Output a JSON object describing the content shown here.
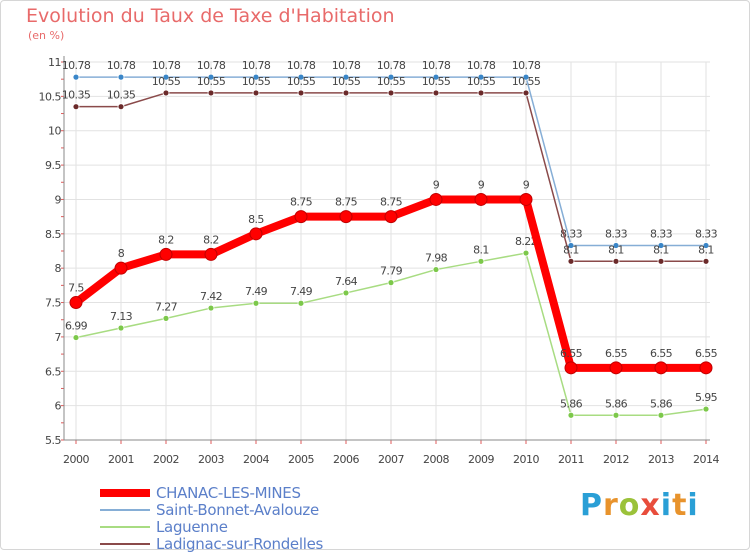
{
  "title": "Evolution du Taux de Taxe d'Habitation",
  "subtitle": "(en %)",
  "logo_text": "Proxiti",
  "chart_data": {
    "type": "line",
    "x": [
      "2000",
      "2001",
      "2002",
      "2003",
      "2004",
      "2005",
      "2006",
      "2007",
      "2008",
      "2009",
      "2010",
      "2011",
      "2012",
      "2013",
      "2014"
    ],
    "ylim": [
      5.5,
      11
    ],
    "yticks": [
      "5.5",
      "6",
      "6.5",
      "7",
      "7.5",
      "8",
      "8.5",
      "9",
      "9.5",
      "10",
      "10.5",
      "11"
    ],
    "grid": true,
    "legend_position": "bottom-left",
    "series": [
      {
        "name": "CHANAC-LES-MINES",
        "color": "#ff0000",
        "marker": "#ff0000",
        "values": [
          7.5,
          8,
          8.2,
          8.2,
          8.5,
          8.75,
          8.75,
          8.75,
          9,
          9,
          9,
          6.55,
          6.55,
          6.55,
          6.55
        ],
        "labels": [
          "7.5",
          "8",
          "8.2",
          "8.2",
          "8.5",
          "8.75",
          "8.75",
          "8.75",
          "9",
          "9",
          "9",
          "6.55",
          "6.55",
          "6.55",
          "6.55"
        ]
      },
      {
        "name": "Saint-Bonnet-Avalouze",
        "color": "#86aed6",
        "marker": "#3a86c8",
        "values": [
          10.78,
          10.78,
          10.78,
          10.78,
          10.78,
          10.78,
          10.78,
          10.78,
          10.78,
          10.78,
          10.78,
          8.33,
          8.33,
          8.33,
          8.33
        ],
        "labels": [
          "10.78",
          "10.78",
          "10.78",
          "10.78",
          "10.78",
          "10.78",
          "10.78",
          "10.78",
          "10.78",
          "10.78",
          "10.78",
          "8.33",
          "8.33",
          "8.33",
          "8.33"
        ]
      },
      {
        "name": "Laguenne",
        "color": "#a8dc82",
        "marker": "#7cc84a",
        "values": [
          6.99,
          7.13,
          7.27,
          7.42,
          7.49,
          7.49,
          7.64,
          7.79,
          7.98,
          8.1,
          8.22,
          5.86,
          5.86,
          5.86,
          5.95
        ],
        "labels": [
          "6.99",
          "7.13",
          "7.27",
          "7.42",
          "7.49",
          "7.49",
          "7.64",
          "7.79",
          "7.98",
          "8.1",
          "8.22",
          "5.86",
          "5.86",
          "5.86",
          "5.95"
        ]
      },
      {
        "name": "Ladignac-sur-Rondelles",
        "color": "#8a4a4a",
        "marker": "#6b2a2a",
        "values": [
          10.35,
          10.35,
          10.55,
          10.55,
          10.55,
          10.55,
          10.55,
          10.55,
          10.55,
          10.55,
          10.55,
          8.1,
          8.1,
          8.1,
          8.1
        ],
        "labels": [
          "10.35",
          "10.35",
          "10.55",
          "10.55",
          "10.55",
          "10.55",
          "10.55",
          "10.55",
          "10.55",
          "10.55",
          "10.55",
          "8.1",
          "8.1",
          "8.1",
          "8.1"
        ]
      }
    ]
  }
}
